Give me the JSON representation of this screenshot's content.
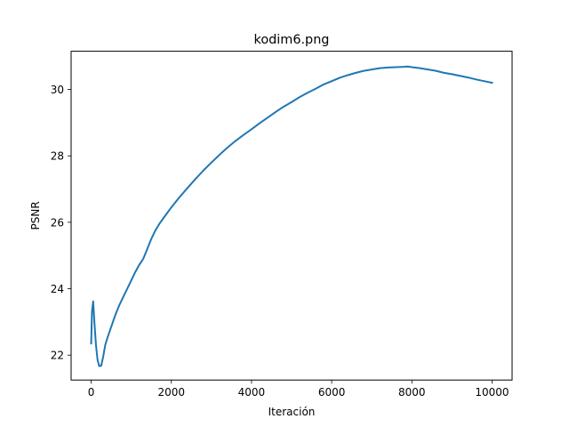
{
  "chart_data": {
    "type": "line",
    "title": "kodim6.png",
    "xlabel": "Iteración",
    "ylabel": "PSNR",
    "xlim": [
      -500,
      10500
    ],
    "ylim": [
      21.25,
      31.15
    ],
    "xticks": [
      0,
      2000,
      4000,
      6000,
      8000,
      10000
    ],
    "yticks": [
      22,
      24,
      26,
      28,
      30
    ],
    "grid": false,
    "colors": {
      "line": "#1f77b4"
    },
    "series": [
      {
        "x": [
          0,
          20,
          50,
          80,
          120,
          160,
          200,
          250,
          300,
          350,
          400,
          500,
          600,
          700,
          800,
          900,
          1000,
          1100,
          1200,
          1300,
          1400,
          1500,
          1600,
          1700,
          1800,
          2000,
          2200,
          2400,
          2600,
          2800,
          3000,
          3200,
          3400,
          3600,
          3800,
          4000,
          4200,
          4400,
          4600,
          4800,
          5000,
          5200,
          5400,
          5600,
          5800,
          6000,
          6200,
          6400,
          6600,
          6800,
          7000,
          7200,
          7400,
          7600,
          7800,
          7900,
          8000,
          8200,
          8400,
          8600,
          8800,
          9000,
          9200,
          9400,
          9600,
          9800,
          10000
        ],
        "y": [
          22.35,
          23.3,
          23.62,
          23.0,
          22.3,
          21.85,
          21.67,
          21.68,
          21.95,
          22.3,
          22.5,
          22.85,
          23.2,
          23.5,
          23.75,
          24.0,
          24.25,
          24.5,
          24.72,
          24.9,
          25.2,
          25.5,
          25.75,
          25.95,
          26.12,
          26.45,
          26.75,
          27.03,
          27.3,
          27.56,
          27.8,
          28.03,
          28.25,
          28.45,
          28.63,
          28.8,
          28.98,
          29.15,
          29.32,
          29.48,
          29.62,
          29.77,
          29.9,
          30.02,
          30.15,
          30.25,
          30.35,
          30.43,
          30.5,
          30.56,
          30.6,
          30.64,
          30.66,
          30.67,
          30.68,
          30.69,
          30.67,
          30.64,
          30.6,
          30.56,
          30.5,
          30.46,
          30.41,
          30.36,
          30.3,
          30.25,
          30.2
        ]
      }
    ]
  }
}
